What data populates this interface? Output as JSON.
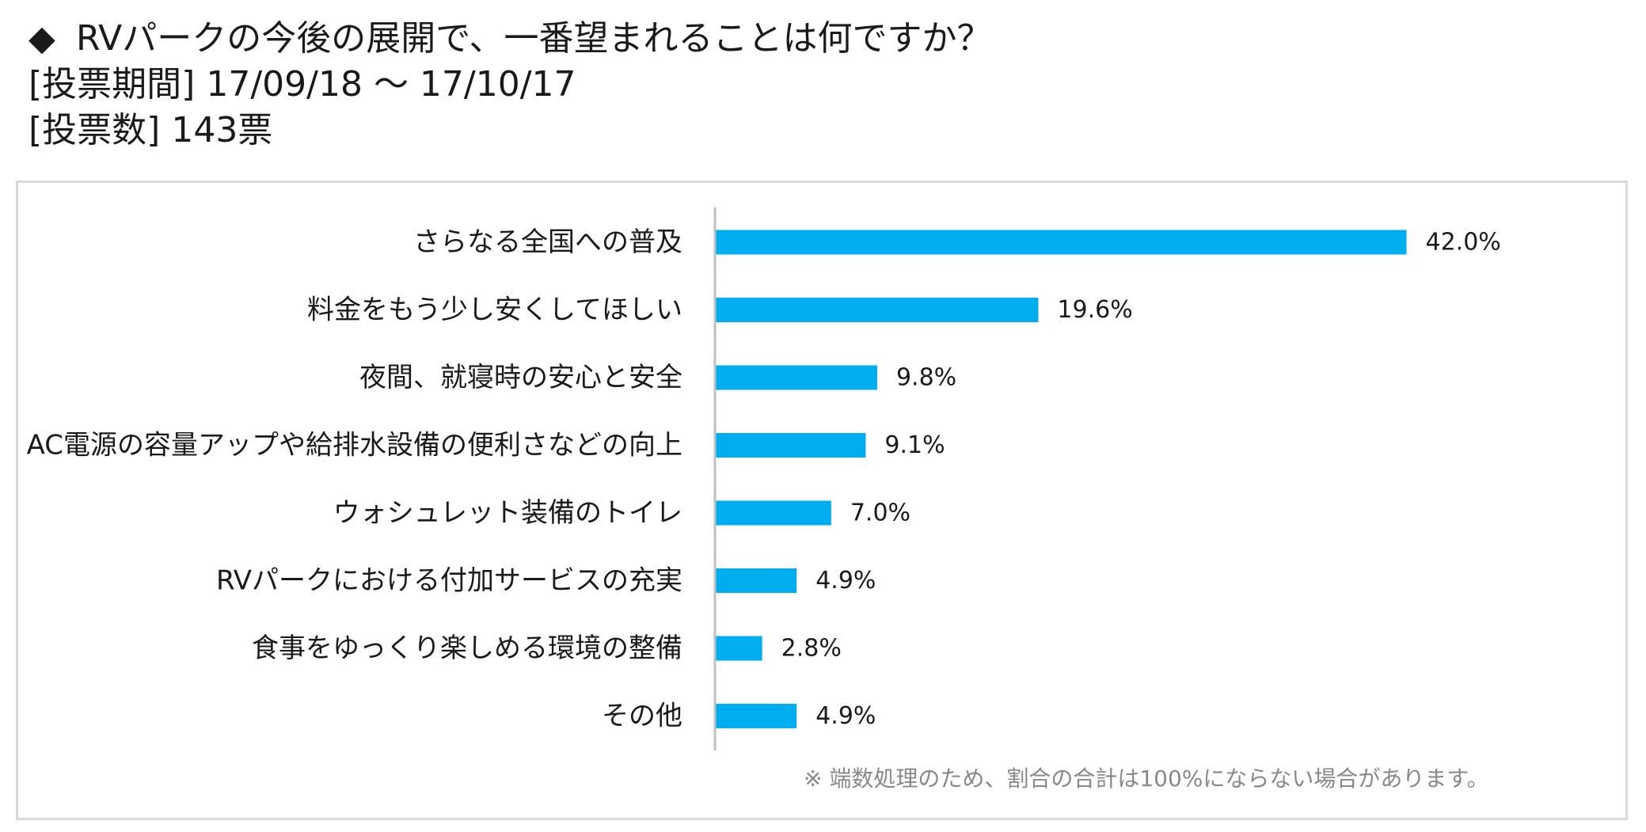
{
  "header": {
    "diamond": "◆",
    "question": "RVパークの今後の展開で、一番望まれることは何ですか？",
    "period_label": "[投票期間]",
    "period_value": "17/09/18 ～ 17/10/17",
    "votes_label": "[投票数]",
    "votes_value": "143票"
  },
  "note": "※ 端数処理のため、割合の合計は100%にならない場合があります。",
  "colors": {
    "bar": "#00aeef",
    "axis": "#bfbfbf",
    "frame": "#d9d9d9"
  },
  "chart_data": {
    "type": "bar",
    "orientation": "horizontal",
    "categories": [
      "さらなる全国への普及",
      "料金をもう少し安くしてほしい",
      "夜間、就寝時の安心と安全",
      "AC電源の容量アップや給排水設備の便利さなどの向上",
      "ウォシュレット装備のトイレ",
      "RVパークにおける付加サービスの充実",
      "食事をゆっくり楽しめる環境の整備",
      "その他"
    ],
    "values": [
      42.0,
      19.6,
      9.8,
      9.1,
      7.0,
      4.9,
      2.8,
      4.9
    ],
    "value_labels": [
      "42.0%",
      "19.6%",
      "9.8%",
      "9.1%",
      "7.0%",
      "4.9%",
      "2.8%",
      "4.9%"
    ],
    "unit": "%",
    "xlim": [
      0,
      42
    ],
    "grid": false,
    "legend": "none"
  }
}
